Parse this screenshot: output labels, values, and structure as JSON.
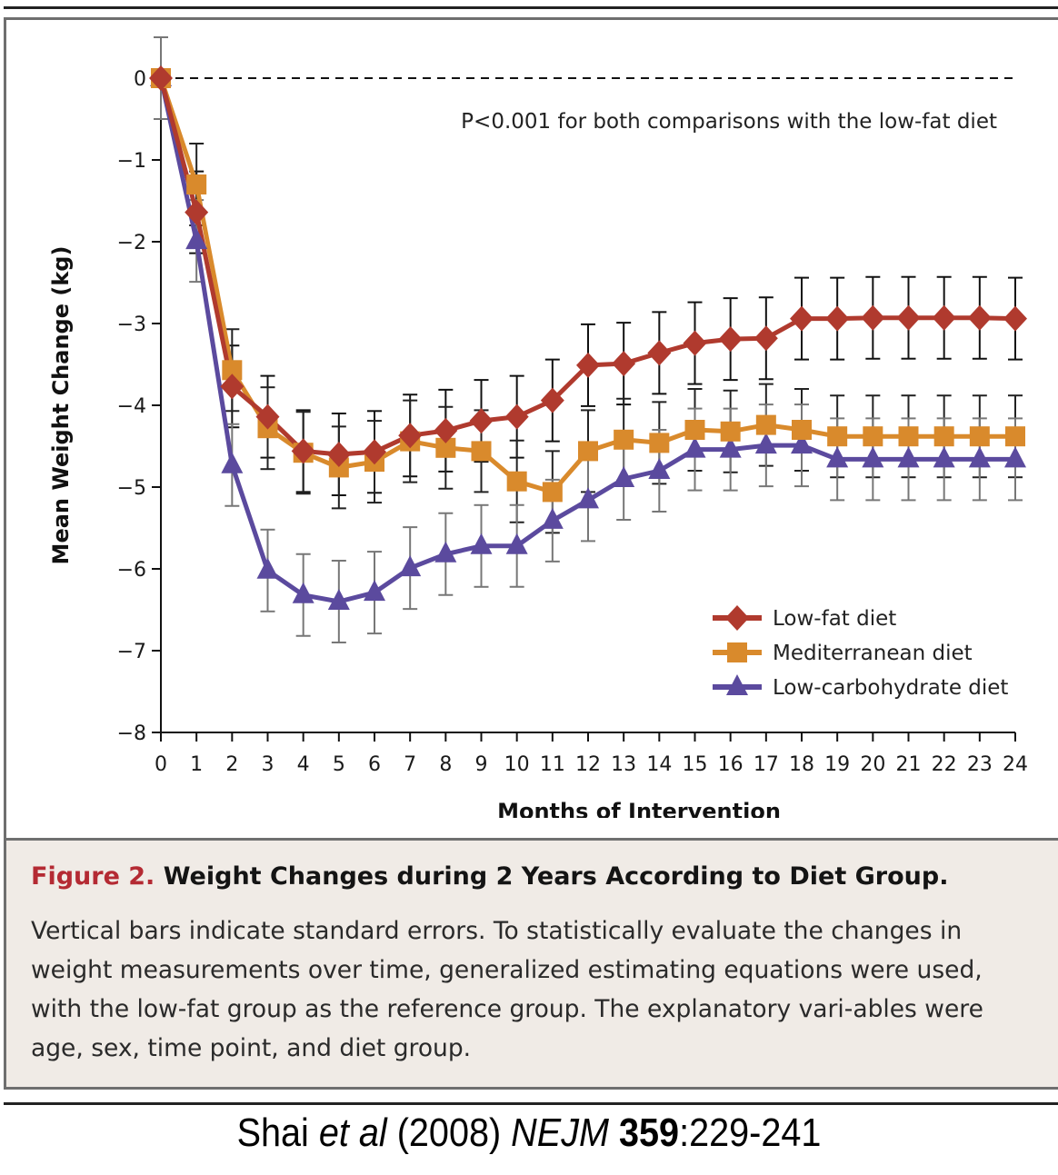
{
  "chart_data": {
    "type": "line",
    "title": "",
    "xlabel": "Months of Intervention",
    "ylabel": "Mean Weight Change (kg)",
    "xlim": [
      0,
      24
    ],
    "ylim": [
      -8,
      0
    ],
    "x": [
      0,
      1,
      2,
      3,
      4,
      5,
      6,
      7,
      8,
      9,
      10,
      11,
      12,
      13,
      14,
      15,
      16,
      17,
      18,
      19,
      20,
      21,
      22,
      23,
      24
    ],
    "x_ticks": [
      "0",
      "1",
      "2",
      "3",
      "4",
      "5",
      "6",
      "7",
      "8",
      "9",
      "10",
      "11",
      "12",
      "13",
      "14",
      "15",
      "16",
      "17",
      "18",
      "19",
      "20",
      "21",
      "22",
      "23",
      "24"
    ],
    "y_ticks": [
      {
        "value": 0,
        "label": "0"
      },
      {
        "value": -1,
        "label": "−1"
      },
      {
        "value": -2,
        "label": "−2"
      },
      {
        "value": -3,
        "label": "−3"
      },
      {
        "value": -4,
        "label": "−4"
      },
      {
        "value": -5,
        "label": "−5"
      },
      {
        "value": -6,
        "label": "−6"
      },
      {
        "value": -7,
        "label": "−7"
      },
      {
        "value": -8,
        "label": "−8"
      }
    ],
    "grid": false,
    "reference_line": {
      "y": 0,
      "style": "dashed"
    },
    "annotation": "P<0.001 for both comparisons with the low-fat diet",
    "legend_position": "lower-right",
    "series": [
      {
        "name": "Low-fat diet",
        "marker": "diamond",
        "color": "#b03a2e",
        "values": [
          0,
          -1.64,
          -3.77,
          -4.14,
          -4.56,
          -4.6,
          -4.57,
          -4.37,
          -4.31,
          -4.19,
          -4.14,
          -3.94,
          -3.51,
          -3.49,
          -3.36,
          -3.24,
          -3.19,
          -3.18,
          -2.94,
          -2.94,
          -2.93,
          -2.93,
          -2.93,
          -2.93,
          -2.94
        ],
        "se": [
          0.5,
          0.5,
          0.5,
          0.5,
          0.5,
          0.5,
          0.5,
          0.5,
          0.5,
          0.5,
          0.5,
          0.5,
          0.5,
          0.5,
          0.5,
          0.5,
          0.5,
          0.5,
          0.5,
          0.5,
          0.5,
          0.5,
          0.5,
          0.5,
          0.5
        ]
      },
      {
        "name": "Mediterranean diet",
        "marker": "square",
        "color": "#d98a2c",
        "values": [
          0,
          -1.3,
          -3.57,
          -4.28,
          -4.58,
          -4.76,
          -4.69,
          -4.44,
          -4.52,
          -4.56,
          -4.93,
          -5.06,
          -4.56,
          -4.42,
          -4.46,
          -4.3,
          -4.32,
          -4.24,
          -4.3,
          -4.38,
          -4.38,
          -4.38,
          -4.38,
          -4.38,
          -4.38
        ],
        "se": [
          0.5,
          0.5,
          0.5,
          0.5,
          0.5,
          0.5,
          0.5,
          0.5,
          0.5,
          0.5,
          0.5,
          0.5,
          0.5,
          0.5,
          0.5,
          0.5,
          0.5,
          0.5,
          0.5,
          0.5,
          0.5,
          0.5,
          0.5,
          0.5,
          0.5
        ]
      },
      {
        "name": "Low-carbohydrate diet",
        "marker": "triangle",
        "color": "#5b4a9e",
        "values": [
          0,
          -1.99,
          -4.73,
          -6.02,
          -6.32,
          -6.4,
          -6.29,
          -5.99,
          -5.82,
          -5.72,
          -5.72,
          -5.41,
          -5.16,
          -4.9,
          -4.8,
          -4.54,
          -4.54,
          -4.49,
          -4.49,
          -4.66,
          -4.66,
          -4.66,
          -4.66,
          -4.66,
          -4.66
        ],
        "se": [
          0.5,
          0.5,
          0.5,
          0.5,
          0.5,
          0.5,
          0.5,
          0.5,
          0.5,
          0.5,
          0.5,
          0.5,
          0.5,
          0.5,
          0.5,
          0.5,
          0.5,
          0.5,
          0.5,
          0.5,
          0.5,
          0.5,
          0.5,
          0.5,
          0.5
        ]
      }
    ]
  },
  "caption": {
    "figure_label": "Figure 2.",
    "title": " Weight Changes during 2 Years According to Diet Group.",
    "body": "Vertical bars indicate standard errors. To statistically evaluate the changes in weight measurements over time, generalized estimating equations were used, with the low-fat group as the reference group. The explanatory vari-ables were age, sex, time point, and diet group."
  },
  "citation": {
    "author": "Shai ",
    "etal": "et al",
    "year": " (2008) ",
    "journal": "NEJM",
    "volume": " 359",
    "pages": ":229-241"
  }
}
